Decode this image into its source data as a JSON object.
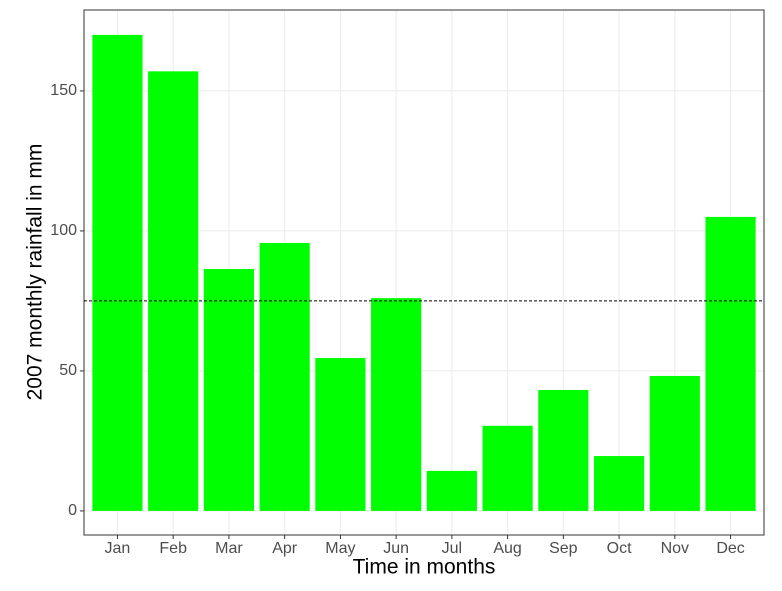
{
  "chart_data": {
    "type": "bar",
    "x_label": "Time in months",
    "y_label": "2007 monthly rainfall in mm",
    "categories": [
      "Jan",
      "Feb",
      "Mar",
      "Apr",
      "May",
      "Jun",
      "Jul",
      "Aug",
      "Sep",
      "Oct",
      "Nov",
      "Dec"
    ],
    "values": [
      170,
      157,
      86.4,
      95.7,
      54.6,
      76,
      14.3,
      30.4,
      43.2,
      19.6,
      48.2,
      105
    ],
    "color": "#00ff00",
    "hline": 75,
    "ylim": [
      -8.6,
      178.9
    ],
    "yticks": [
      0,
      50,
      100,
      150
    ],
    "grid": true
  }
}
